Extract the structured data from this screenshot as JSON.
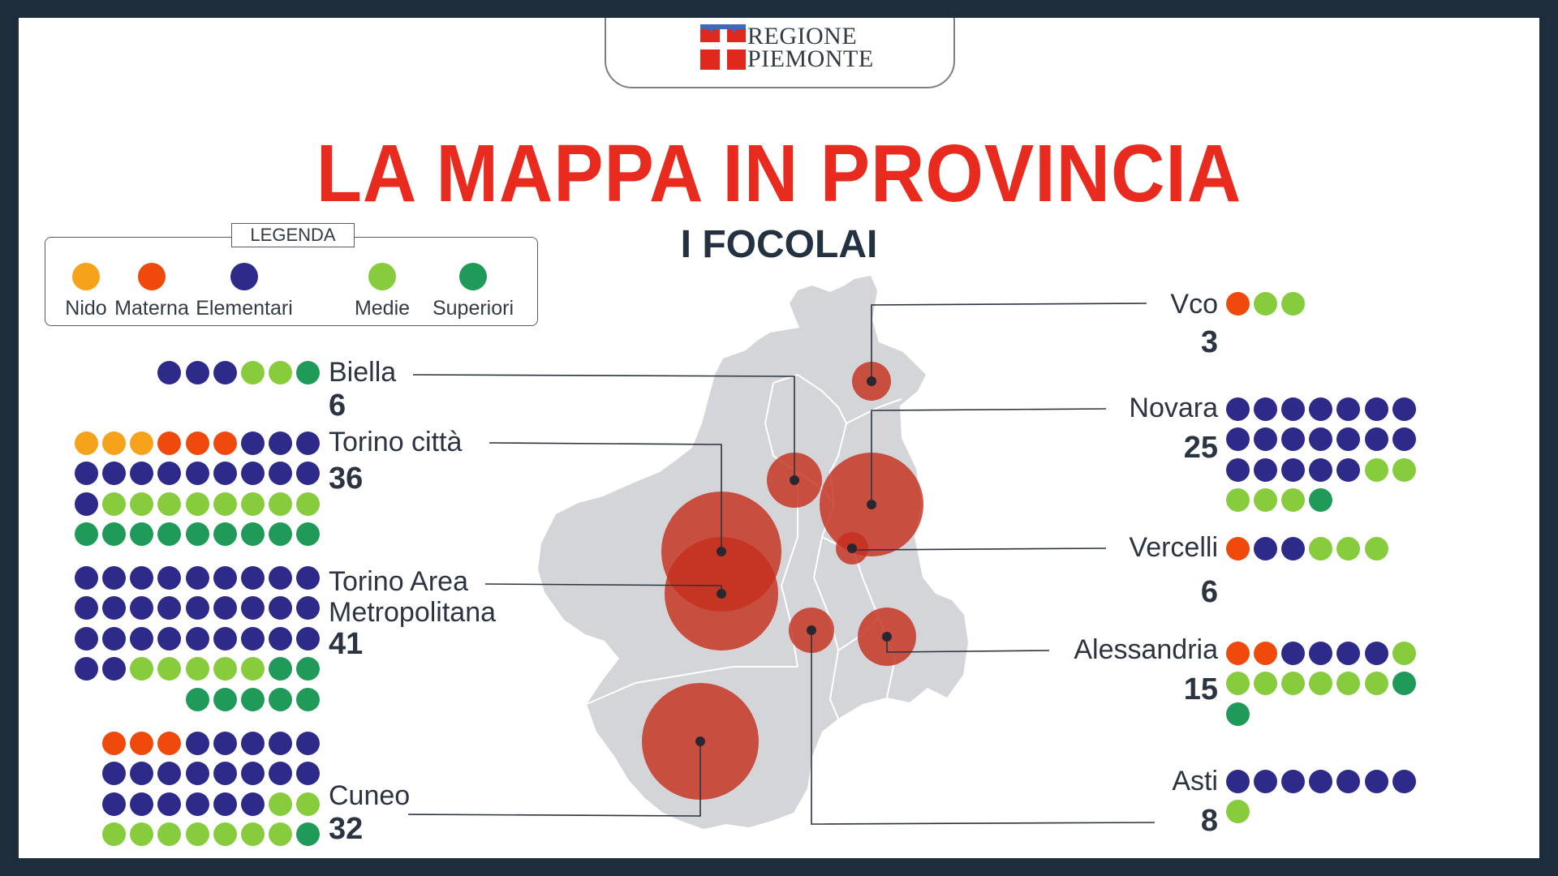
{
  "logo": {
    "line1": "REGIONE",
    "line2": "PIEMONTE"
  },
  "title": "LA MAPPA IN PROVINCIA",
  "subtitle": "I FOCOLAI",
  "legend": {
    "title": "LEGENDA",
    "items": [
      {
        "key": "nido",
        "label": "Nido",
        "color": "#f7a21b"
      },
      {
        "key": "materna",
        "label": "Materna",
        "color": "#f0490c"
      },
      {
        "key": "elementari",
        "label": "Elementari",
        "color": "#2d2a8a"
      },
      {
        "key": "medie",
        "label": "Medie",
        "color": "#86cc3c"
      },
      {
        "key": "superiori",
        "label": "Superiori",
        "color": "#1f9a59"
      }
    ]
  },
  "colors": {
    "title": "#e82b1e",
    "map_fill": "#d4d5d9",
    "bubble": "#c62f1f",
    "text_dark": "#2b3440",
    "frame": "#1e2d3b"
  },
  "provinces": [
    {
      "key": "biella",
      "label": "Biella",
      "count": "6",
      "breakdown": {
        "nido": 0,
        "materna": 0,
        "elementari": 3,
        "medie": 2,
        "superiori": 1
      }
    },
    {
      "key": "torino_citta",
      "label": "Torino città",
      "count": "36",
      "breakdown": {
        "nido": 3,
        "materna": 3,
        "elementari": 13,
        "medie": 8,
        "superiori": 9
      }
    },
    {
      "key": "torino_area",
      "label": "Torino Area Metropolitana",
      "count": "41",
      "breakdown": {
        "nido": 0,
        "materna": 0,
        "elementari": 29,
        "medie": 5,
        "superiori": 7
      }
    },
    {
      "key": "cuneo",
      "label": "Cuneo",
      "count": "32",
      "breakdown": {
        "nido": 0,
        "materna": 3,
        "elementari": 19,
        "medie": 9,
        "superiori": 1
      }
    },
    {
      "key": "vco",
      "label": "Vco",
      "count": "3",
      "breakdown": {
        "nido": 0,
        "materna": 1,
        "elementari": 0,
        "medie": 2,
        "superiori": 0
      }
    },
    {
      "key": "novara",
      "label": "Novara",
      "count": "25",
      "breakdown": {
        "nido": 0,
        "materna": 0,
        "elementari": 19,
        "medie": 5,
        "superiori": 1
      }
    },
    {
      "key": "vercelli",
      "label": "Vercelli",
      "count": "6",
      "breakdown": {
        "nido": 0,
        "materna": 1,
        "elementari": 2,
        "medie": 3,
        "superiori": 0
      }
    },
    {
      "key": "alessandria",
      "label": "Alessandria",
      "count": "15",
      "breakdown": {
        "nido": 0,
        "materna": 2,
        "elementari": 4,
        "medie": 7,
        "superiori": 2
      }
    },
    {
      "key": "asti",
      "label": "Asti",
      "count": "8",
      "breakdown": {
        "nido": 0,
        "materna": 0,
        "elementari": 7,
        "medie": 1,
        "superiori": 0
      }
    }
  ]
}
